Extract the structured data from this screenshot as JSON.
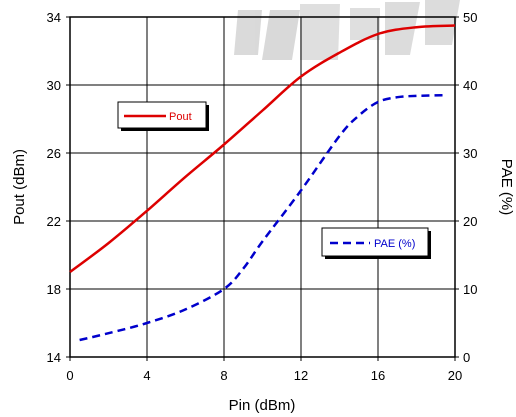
{
  "chart_data": {
    "type": "line",
    "title": "",
    "xlabel": "Pin (dBm)",
    "ylabel_left": "Pout (dBm)",
    "ylabel_right": "PAE (%)",
    "xlim": [
      0,
      20
    ],
    "ylim_left": [
      14,
      34
    ],
    "ylim_right": [
      0,
      50
    ],
    "x_ticks": [
      "0",
      "4",
      "8",
      "12",
      "16",
      "20"
    ],
    "y_left_ticks": [
      "14",
      "18",
      "22",
      "26",
      "30",
      "34"
    ],
    "y_right_ticks": [
      "0",
      "10",
      "20",
      "30",
      "40",
      "50"
    ],
    "grid": true,
    "legend_placement": "separate boxes: Pout upper-left, PAE right-center",
    "series": [
      {
        "name": "Pout",
        "axis": "left",
        "color": "#dd0000",
        "style": "solid",
        "x": [
          0,
          2,
          4,
          6,
          8,
          10,
          12,
          14,
          16,
          18,
          20
        ],
        "values": [
          19.0,
          20.7,
          22.6,
          24.6,
          26.5,
          28.5,
          30.5,
          31.9,
          33.0,
          33.4,
          33.5
        ]
      },
      {
        "name": "PAE (%)",
        "axis": "right",
        "color": "#0000cc",
        "style": "dashed",
        "x": [
          0.5,
          2,
          4,
          6,
          8,
          9,
          10,
          12,
          14,
          15,
          16,
          17,
          18,
          19.5
        ],
        "values": [
          2.5,
          3.5,
          5,
          7,
          10,
          13,
          17,
          24.5,
          32.5,
          35.5,
          37.5,
          38.2,
          38.4,
          38.5
        ]
      }
    ]
  }
}
